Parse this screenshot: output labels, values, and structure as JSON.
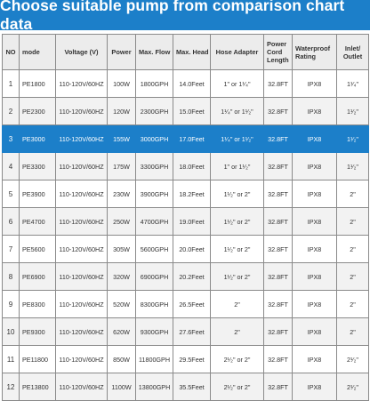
{
  "title": "Choose suitable pump from comparison chart data",
  "colors": {
    "accent": "#1c7fc9",
    "header_bg": "#ececec",
    "stripe": "#f2f2f2",
    "border": "#8a8a8a",
    "text": "#333333"
  },
  "headers": {
    "no": "NO",
    "mode": "mode",
    "voltage": "Voltage (V)",
    "power": "Power",
    "flow": "Max. Flow",
    "head": "Max. Head",
    "hose": "Hose Adapter",
    "cord": "Power Cord Length",
    "waterproof": "Waterproof Rating",
    "inlet": "Inlet/ Outlet"
  },
  "highlighted_row": 3,
  "rows": [
    {
      "no": "1",
      "mode": "PE1800",
      "voltage": "110-120V/60HZ",
      "power": "100W",
      "flow": "1800GPH",
      "head": "14.0Feet",
      "hose": "1\" or 1¹⁄₄\"",
      "cord": "32.8FT",
      "waterproof": "IPX8",
      "inlet": "1¹⁄₄\""
    },
    {
      "no": "2",
      "mode": "PE2300",
      "voltage": "110-120V/60HZ",
      "power": "120W",
      "flow": "2300GPH",
      "head": "15.0Feet",
      "hose": "1¹⁄₄\" or 1¹⁄₂\"",
      "cord": "32.8FT",
      "waterproof": "IPX8",
      "inlet": "1¹⁄₂\""
    },
    {
      "no": "3",
      "mode": "PE3000",
      "voltage": "110-120V/60HZ",
      "power": "155W",
      "flow": "3000GPH",
      "head": "17.0Feet",
      "hose": "1¹⁄₄\" or 1¹⁄₂\"",
      "cord": "32.8FT",
      "waterproof": "IPX8",
      "inlet": "1¹⁄₂\""
    },
    {
      "no": "4",
      "mode": "PE3300",
      "voltage": "110-120V/60HZ",
      "power": "175W",
      "flow": "3300GPH",
      "head": "18.0Feet",
      "hose": "1\" or 1¹⁄₂\"",
      "cord": "32.8FT",
      "waterproof": "IPX8",
      "inlet": "1¹⁄₂\""
    },
    {
      "no": "5",
      "mode": "PE3900",
      "voltage": "110-120V/60HZ",
      "power": "230W",
      "flow": "3900GPH",
      "head": "18.2Feet",
      "hose": "1¹⁄₂\" or 2\"",
      "cord": "32.8FT",
      "waterproof": "IPX8",
      "inlet": "2\""
    },
    {
      "no": "6",
      "mode": "PE4700",
      "voltage": "110-120V/60HZ",
      "power": "250W",
      "flow": "4700GPH",
      "head": "19.0Feet",
      "hose": "1¹⁄₂\" or 2\"",
      "cord": "32.8FT",
      "waterproof": "IPX8",
      "inlet": "2\""
    },
    {
      "no": "7",
      "mode": "PE5600",
      "voltage": "110-120V/60HZ",
      "power": "305W",
      "flow": "5600GPH",
      "head": "20.0Feet",
      "hose": "1¹⁄₂\" or 2\"",
      "cord": "32.8FT",
      "waterproof": "IPX8",
      "inlet": "2\""
    },
    {
      "no": "8",
      "mode": "PE6900",
      "voltage": "110-120V/60HZ",
      "power": "320W",
      "flow": "6900GPH",
      "head": "20.2Feet",
      "hose": "1¹⁄₂\" or 2\"",
      "cord": "32.8FT",
      "waterproof": "IPX8",
      "inlet": "2\""
    },
    {
      "no": "9",
      "mode": "PE8300",
      "voltage": "110-120V/60HZ",
      "power": "520W",
      "flow": "8300GPH",
      "head": "26.5Feet",
      "hose": "2\"",
      "cord": "32.8FT",
      "waterproof": "IPX8",
      "inlet": "2\""
    },
    {
      "no": "10",
      "mode": "PE9300",
      "voltage": "110-120V/60HZ",
      "power": "620W",
      "flow": "9300GPH",
      "head": "27.6Feet",
      "hose": "2\"",
      "cord": "32.8FT",
      "waterproof": "IPX8",
      "inlet": "2\""
    },
    {
      "no": "11",
      "mode": "PE11800",
      "voltage": "110-120V/60HZ",
      "power": "850W",
      "flow": "11800GPH",
      "head": "29.5Feet",
      "hose": "2¹⁄₂\" or 2\"",
      "cord": "32.8FT",
      "waterproof": "IPX8",
      "inlet": "2¹⁄₂\""
    },
    {
      "no": "12",
      "mode": "PE13800",
      "voltage": "110-120V/60HZ",
      "power": "1100W",
      "flow": "13800GPH",
      "head": "35.5Feet",
      "hose": "2¹⁄₂\" or 2\"",
      "cord": "32.8FT",
      "waterproof": "IPX8",
      "inlet": "2¹⁄₂\""
    }
  ]
}
